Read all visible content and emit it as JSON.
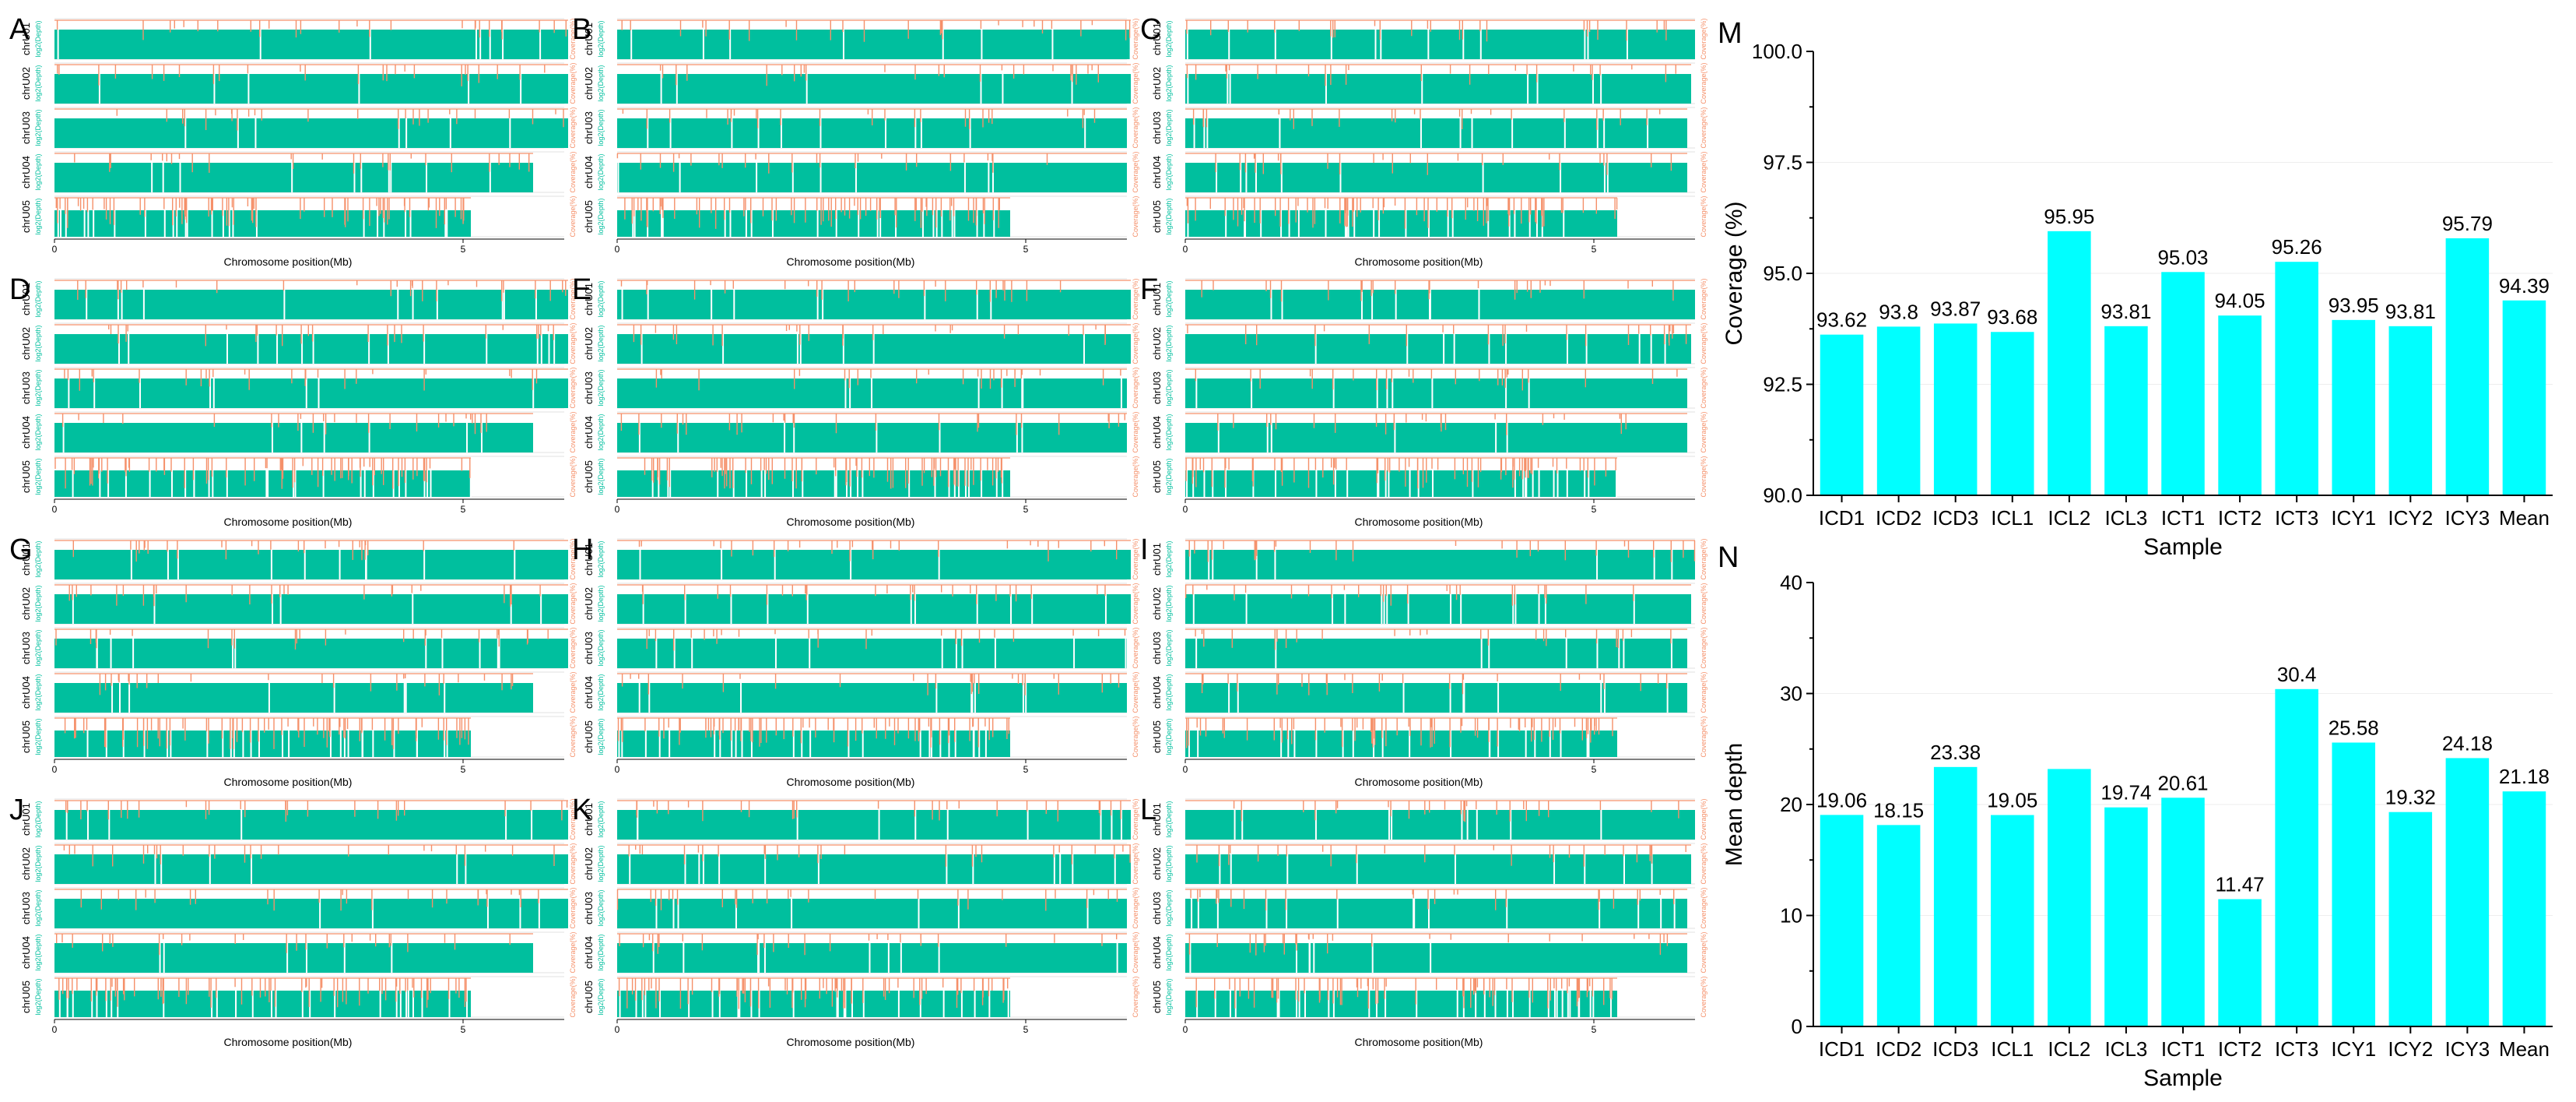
{
  "colors": {
    "teal": "#00BF9E",
    "orange": "#F5906A",
    "cyan": "#00FFFF",
    "axis": "#000000"
  },
  "track_panels": {
    "labels": [
      "A",
      "B",
      "C",
      "D",
      "E",
      "F",
      "G",
      "H",
      "I",
      "J",
      "K",
      "L"
    ],
    "chromosomes": [
      "chrU01",
      "chrU02",
      "chrU03",
      "chrU04",
      "chrU05"
    ],
    "depth_axis_label": "log2(Depth)",
    "coverage_axis_label": "Coverage(%)",
    "xlabel": "Chromosome position(Mb)",
    "xticks": [
      "0",
      "5"
    ]
  },
  "chart_data": [
    {
      "id": "M",
      "type": "bar",
      "title": "",
      "xlabel": "Sample",
      "ylabel": "Coverage (%)",
      "ylim": [
        90.0,
        100.0
      ],
      "yticks": [
        "90.0",
        "92.5",
        "95.0",
        "97.5",
        "100.0"
      ],
      "categories": [
        "ICD1",
        "ICD2",
        "ICD3",
        "ICL1",
        "ICL2",
        "ICL3",
        "ICT1",
        "ICT2",
        "ICT3",
        "ICY1",
        "ICY2",
        "ICY3",
        "Mean"
      ],
      "values": [
        93.62,
        93.8,
        93.87,
        93.68,
        95.95,
        93.81,
        95.03,
        94.05,
        95.26,
        93.95,
        93.81,
        95.79,
        94.39
      ],
      "labels": [
        "93.62",
        "93.8",
        "93.87",
        "93.68",
        "95.95",
        "93.81",
        "95.03",
        "94.05",
        "95.26",
        "93.95",
        "93.81",
        "95.79",
        "94.39"
      ]
    },
    {
      "id": "N",
      "type": "bar",
      "title": "",
      "xlabel": "Sample",
      "ylabel": "Mean depth",
      "ylim": [
        0,
        40
      ],
      "yticks": [
        "0",
        "10",
        "20",
        "30",
        "40"
      ],
      "categories": [
        "ICD1",
        "ICD2",
        "ICD3",
        "ICL1",
        "ICL2",
        "ICL3",
        "ICT1",
        "ICT2",
        "ICT3",
        "ICY1",
        "ICY2",
        "ICY3",
        "Mean"
      ],
      "values": [
        19.06,
        18.15,
        23.38,
        19.05,
        23.2,
        19.74,
        20.61,
        11.47,
        30.4,
        25.58,
        19.32,
        24.18,
        21.18
      ],
      "labels": [
        "19.06",
        "18.15",
        "23.38",
        "19.05",
        "",
        "19.74",
        "20.61",
        "11.47",
        "30.4",
        "25.58",
        "19.32",
        "24.18",
        "21.18"
      ]
    }
  ]
}
